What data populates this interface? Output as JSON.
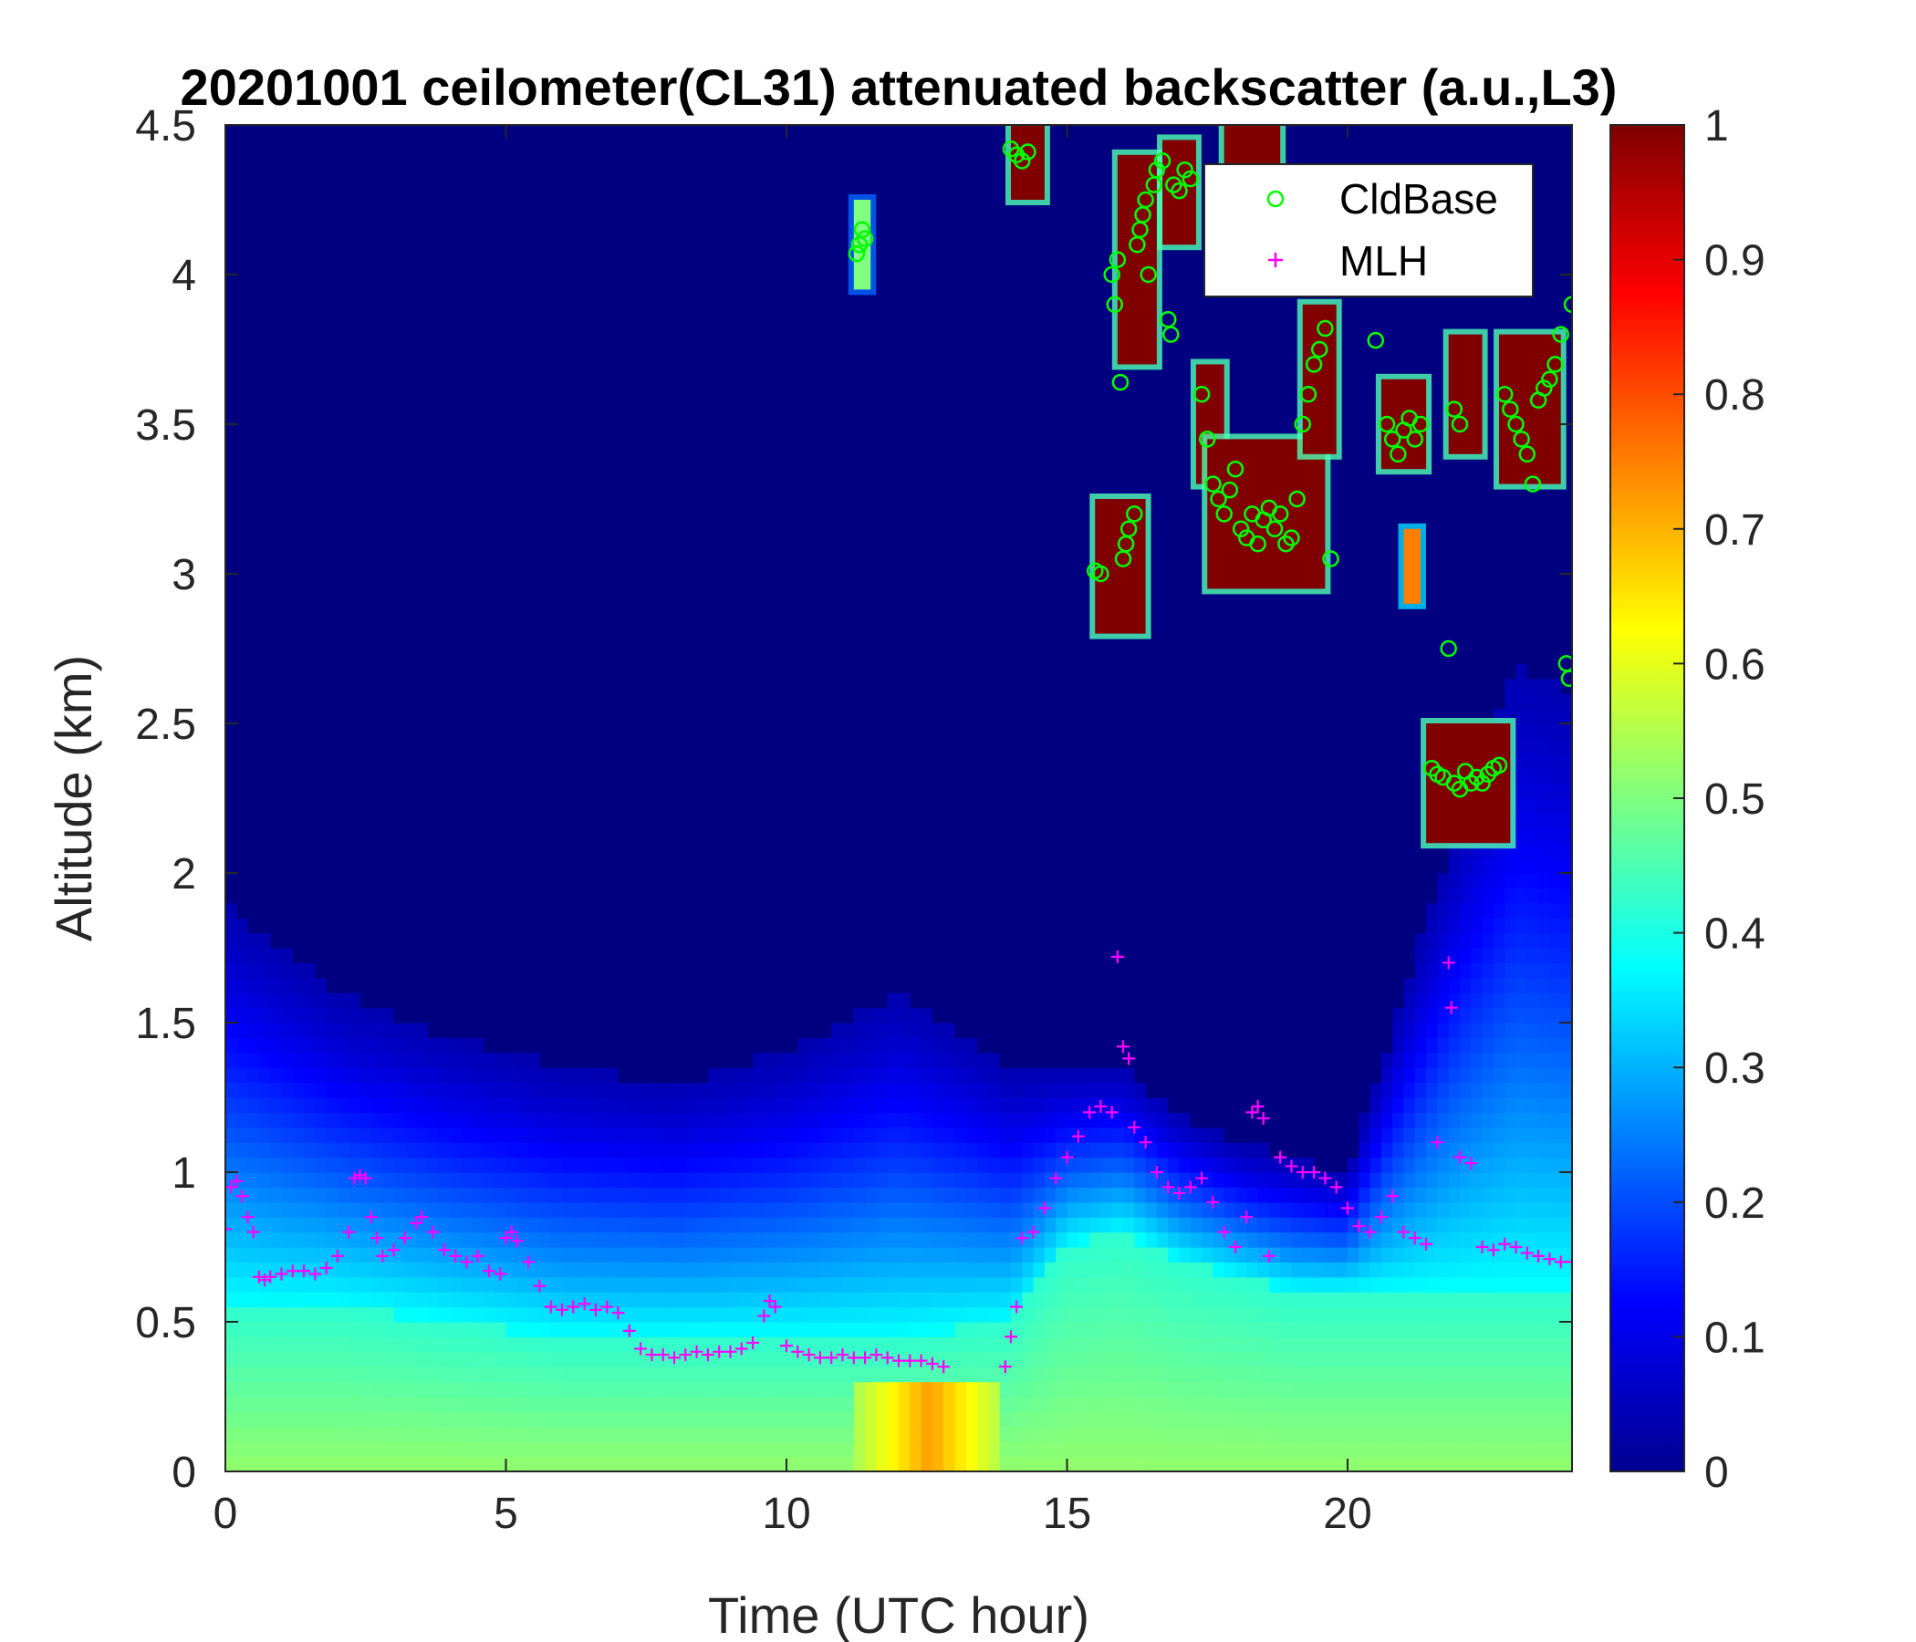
{
  "chart_data": {
    "type": "heatmap",
    "title": "20201001 ceilometer(CL31) attenuated backscatter (a.u.,L3)",
    "xlabel": "Time (UTC hour)",
    "ylabel": "Altitude (km)",
    "xlim": [
      0,
      24
    ],
    "ylim": [
      0,
      4.5
    ],
    "x_ticks": [
      0,
      5,
      10,
      15,
      20
    ],
    "y_ticks": [
      0,
      0.5,
      1,
      1.5,
      2,
      2.5,
      3,
      3.5,
      4,
      4.5
    ],
    "colorbar": {
      "colormap": "jet",
      "range": [
        0,
        1
      ],
      "ticks": [
        0,
        0.1,
        0.2,
        0.3,
        0.4,
        0.5,
        0.6,
        0.7,
        0.8,
        0.9,
        1
      ]
    },
    "legend": {
      "placement": "top-right",
      "entries": [
        {
          "label": "CldBase",
          "marker": "circle",
          "color": "#00ff00"
        },
        {
          "label": "MLH",
          "marker": "plus",
          "color": "#ff00ff"
        }
      ]
    },
    "background_layers": [
      {
        "t": 0,
        "top": 1.9,
        "base": 0.55
      },
      {
        "t": 2,
        "top": 1.6,
        "base": 0.55
      },
      {
        "t": 4,
        "top": 1.45,
        "base": 0.5
      },
      {
        "t": 6,
        "top": 1.35,
        "base": 0.45
      },
      {
        "t": 8,
        "top": 1.3,
        "base": 0.45
      },
      {
        "t": 10,
        "top": 1.4,
        "base": 0.45
      },
      {
        "t": 12,
        "top": 1.6,
        "base": 0.45
      },
      {
        "t": 14,
        "top": 1.35,
        "base": 0.5
      },
      {
        "t": 15,
        "top": 1.35,
        "base": 0.75
      },
      {
        "t": 16,
        "top": 1.35,
        "base": 0.8
      },
      {
        "t": 17,
        "top": 1.2,
        "base": 0.7
      },
      {
        "t": 18,
        "top": 1.1,
        "base": 0.65
      },
      {
        "t": 19,
        "top": 1.05,
        "base": 0.6
      },
      {
        "t": 20,
        "top": 1.0,
        "base": 0.6
      },
      {
        "t": 21,
        "top": 1.6,
        "base": 0.6
      },
      {
        "t": 22,
        "top": 2.2,
        "base": 0.6
      },
      {
        "t": 23,
        "top": 2.7,
        "base": 0.6
      },
      {
        "t": 24,
        "top": 2.6,
        "base": 0.6
      }
    ],
    "surface_hotspot": {
      "t_start": 11.3,
      "t_end": 13.8,
      "alt_max": 0.32,
      "value": 0.72
    },
    "cloud_patches": [
      {
        "t0": 11.2,
        "t1": 11.5,
        "z0": 3.95,
        "z1": 4.25,
        "value": 0.5
      },
      {
        "t0": 14.0,
        "t1": 14.6,
        "z0": 4.25,
        "z1": 4.5,
        "value": 1.0
      },
      {
        "t0": 15.5,
        "t1": 16.4,
        "z0": 2.8,
        "z1": 3.25,
        "value": 1.0
      },
      {
        "t0": 15.9,
        "t1": 16.6,
        "z0": 3.7,
        "z1": 4.4,
        "value": 1.0
      },
      {
        "t0": 16.7,
        "t1": 17.3,
        "z0": 4.1,
        "z1": 4.45,
        "value": 1.0
      },
      {
        "t0": 17.3,
        "t1": 17.8,
        "z0": 3.3,
        "z1": 3.7,
        "value": 1.0
      },
      {
        "t0": 17.5,
        "t1": 19.6,
        "z0": 2.95,
        "z1": 3.45,
        "value": 1.0
      },
      {
        "t0": 17.8,
        "t1": 18.8,
        "z0": 4.3,
        "z1": 4.5,
        "value": 1.0
      },
      {
        "t0": 19.2,
        "t1": 19.8,
        "z0": 3.4,
        "z1": 3.9,
        "value": 1.0
      },
      {
        "t0": 20.6,
        "t1": 21.4,
        "z0": 3.35,
        "z1": 3.65,
        "value": 1.0
      },
      {
        "t0": 21.0,
        "t1": 21.3,
        "z0": 2.9,
        "z1": 3.15,
        "value": 0.75
      },
      {
        "t0": 21.4,
        "t1": 22.9,
        "z0": 2.1,
        "z1": 2.5,
        "value": 1.0
      },
      {
        "t0": 21.8,
        "t1": 22.4,
        "z0": 3.4,
        "z1": 3.8,
        "value": 1.0
      },
      {
        "t0": 22.7,
        "t1": 23.8,
        "z0": 3.3,
        "z1": 3.8,
        "value": 1.0
      }
    ],
    "series": [
      {
        "name": "CldBase",
        "points": [
          [
            11.25,
            4.07
          ],
          [
            11.3,
            4.1
          ],
          [
            11.35,
            4.15
          ],
          [
            11.4,
            4.12
          ],
          [
            14.0,
            4.42
          ],
          [
            14.1,
            4.4
          ],
          [
            14.2,
            4.38
          ],
          [
            14.3,
            4.41
          ],
          [
            15.5,
            3.01
          ],
          [
            15.6,
            3.0
          ],
          [
            15.8,
            4.0
          ],
          [
            15.85,
            3.9
          ],
          [
            15.9,
            4.05
          ],
          [
            15.95,
            3.64
          ],
          [
            16.0,
            3.05
          ],
          [
            16.05,
            3.1
          ],
          [
            16.1,
            3.15
          ],
          [
            16.2,
            3.2
          ],
          [
            16.25,
            4.1
          ],
          [
            16.3,
            4.15
          ],
          [
            16.35,
            4.2
          ],
          [
            16.4,
            4.25
          ],
          [
            16.45,
            4.0
          ],
          [
            16.55,
            4.3
          ],
          [
            16.6,
            4.35
          ],
          [
            16.7,
            4.38
          ],
          [
            16.8,
            3.85
          ],
          [
            16.85,
            3.8
          ],
          [
            16.9,
            4.3
          ],
          [
            17.0,
            4.28
          ],
          [
            17.1,
            4.35
          ],
          [
            17.2,
            4.32
          ],
          [
            17.4,
            3.6
          ],
          [
            17.5,
            3.45
          ],
          [
            17.6,
            3.3
          ],
          [
            17.7,
            3.25
          ],
          [
            17.8,
            3.2
          ],
          [
            17.9,
            3.28
          ],
          [
            18.0,
            3.35
          ],
          [
            18.1,
            3.15
          ],
          [
            18.2,
            3.12
          ],
          [
            18.3,
            3.2
          ],
          [
            18.4,
            3.1
          ],
          [
            18.5,
            3.18
          ],
          [
            18.6,
            3.22
          ],
          [
            18.7,
            3.15
          ],
          [
            18.8,
            3.2
          ],
          [
            18.9,
            3.1
          ],
          [
            19.0,
            3.12
          ],
          [
            19.1,
            3.25
          ],
          [
            19.2,
            3.5
          ],
          [
            19.3,
            3.6
          ],
          [
            19.4,
            3.7
          ],
          [
            19.5,
            3.75
          ],
          [
            19.6,
            3.82
          ],
          [
            19.7,
            3.05
          ],
          [
            20.5,
            3.78
          ],
          [
            20.7,
            3.5
          ],
          [
            20.8,
            3.45
          ],
          [
            20.9,
            3.4
          ],
          [
            21.0,
            3.48
          ],
          [
            21.1,
            3.52
          ],
          [
            21.2,
            3.45
          ],
          [
            21.3,
            3.5
          ],
          [
            21.5,
            2.35
          ],
          [
            21.6,
            2.33
          ],
          [
            21.7,
            2.32
          ],
          [
            21.8,
            2.75
          ],
          [
            21.9,
            2.3
          ],
          [
            22.0,
            2.28
          ],
          [
            22.1,
            2.34
          ],
          [
            22.2,
            2.3
          ],
          [
            22.3,
            2.32
          ],
          [
            22.4,
            2.3
          ],
          [
            22.5,
            2.33
          ],
          [
            22.6,
            2.35
          ],
          [
            22.7,
            2.36
          ],
          [
            21.9,
            3.55
          ],
          [
            22.0,
            3.5
          ],
          [
            22.8,
            3.6
          ],
          [
            22.9,
            3.55
          ],
          [
            23.0,
            3.5
          ],
          [
            23.1,
            3.45
          ],
          [
            23.2,
            3.4
          ],
          [
            23.3,
            3.3
          ],
          [
            23.4,
            3.58
          ],
          [
            23.5,
            3.62
          ],
          [
            23.6,
            3.65
          ],
          [
            23.7,
            3.7
          ],
          [
            23.8,
            3.8
          ],
          [
            23.9,
            2.7
          ],
          [
            23.95,
            2.65
          ],
          [
            24.0,
            3.9
          ]
        ]
      },
      {
        "name": "MLH",
        "points": [
          [
            0.0,
            0.81
          ],
          [
            0.1,
            0.95
          ],
          [
            0.2,
            0.97
          ],
          [
            0.3,
            0.92
          ],
          [
            0.4,
            0.85
          ],
          [
            0.5,
            0.8
          ],
          [
            0.6,
            0.65
          ],
          [
            0.7,
            0.64
          ],
          [
            0.8,
            0.65
          ],
          [
            1.0,
            0.66
          ],
          [
            1.2,
            0.67
          ],
          [
            1.4,
            0.67
          ],
          [
            1.6,
            0.66
          ],
          [
            1.8,
            0.68
          ],
          [
            2.0,
            0.72
          ],
          [
            2.2,
            0.8
          ],
          [
            2.3,
            0.98
          ],
          [
            2.4,
            0.99
          ],
          [
            2.5,
            0.98
          ],
          [
            2.6,
            0.85
          ],
          [
            2.7,
            0.78
          ],
          [
            2.8,
            0.72
          ],
          [
            3.0,
            0.74
          ],
          [
            3.2,
            0.78
          ],
          [
            3.4,
            0.83
          ],
          [
            3.5,
            0.85
          ],
          [
            3.7,
            0.8
          ],
          [
            3.9,
            0.74
          ],
          [
            4.1,
            0.72
          ],
          [
            4.3,
            0.7
          ],
          [
            4.5,
            0.72
          ],
          [
            4.7,
            0.67
          ],
          [
            4.9,
            0.66
          ],
          [
            5.0,
            0.78
          ],
          [
            5.1,
            0.8
          ],
          [
            5.2,
            0.77
          ],
          [
            5.4,
            0.7
          ],
          [
            5.6,
            0.62
          ],
          [
            5.8,
            0.55
          ],
          [
            6.0,
            0.54
          ],
          [
            6.2,
            0.55
          ],
          [
            6.4,
            0.56
          ],
          [
            6.6,
            0.54
          ],
          [
            6.8,
            0.55
          ],
          [
            7.0,
            0.53
          ],
          [
            7.2,
            0.47
          ],
          [
            7.4,
            0.41
          ],
          [
            7.6,
            0.39
          ],
          [
            7.8,
            0.39
          ],
          [
            8.0,
            0.38
          ],
          [
            8.2,
            0.39
          ],
          [
            8.4,
            0.4
          ],
          [
            8.6,
            0.39
          ],
          [
            8.8,
            0.4
          ],
          [
            9.0,
            0.4
          ],
          [
            9.2,
            0.41
          ],
          [
            9.4,
            0.43
          ],
          [
            9.6,
            0.52
          ],
          [
            9.7,
            0.57
          ],
          [
            9.8,
            0.55
          ],
          [
            10.0,
            0.42
          ],
          [
            10.2,
            0.4
          ],
          [
            10.4,
            0.39
          ],
          [
            10.6,
            0.38
          ],
          [
            10.8,
            0.38
          ],
          [
            11.0,
            0.39
          ],
          [
            11.2,
            0.38
          ],
          [
            11.4,
            0.38
          ],
          [
            11.6,
            0.39
          ],
          [
            11.8,
            0.38
          ],
          [
            12.0,
            0.37
          ],
          [
            12.2,
            0.37
          ],
          [
            12.4,
            0.37
          ],
          [
            12.6,
            0.36
          ],
          [
            12.8,
            0.35
          ],
          [
            13.9,
            0.35
          ],
          [
            14.0,
            0.45
          ],
          [
            14.1,
            0.55
          ],
          [
            14.2,
            0.78
          ],
          [
            14.4,
            0.8
          ],
          [
            14.6,
            0.88
          ],
          [
            14.8,
            0.98
          ],
          [
            15.0,
            1.05
          ],
          [
            15.2,
            1.12
          ],
          [
            15.4,
            1.2
          ],
          [
            15.6,
            1.22
          ],
          [
            15.8,
            1.2
          ],
          [
            15.9,
            1.72
          ],
          [
            16.0,
            1.42
          ],
          [
            16.1,
            1.38
          ],
          [
            16.2,
            1.15
          ],
          [
            16.4,
            1.1
          ],
          [
            16.6,
            1.0
          ],
          [
            16.8,
            0.95
          ],
          [
            17.0,
            0.93
          ],
          [
            17.2,
            0.95
          ],
          [
            17.4,
            0.98
          ],
          [
            17.6,
            0.9
          ],
          [
            17.8,
            0.8
          ],
          [
            18.0,
            0.75
          ],
          [
            18.2,
            0.85
          ],
          [
            18.3,
            1.2
          ],
          [
            18.4,
            1.22
          ],
          [
            18.5,
            1.18
          ],
          [
            18.6,
            0.72
          ],
          [
            18.8,
            1.05
          ],
          [
            19.0,
            1.02
          ],
          [
            19.2,
            1.0
          ],
          [
            19.4,
            1.0
          ],
          [
            19.6,
            0.98
          ],
          [
            19.8,
            0.95
          ],
          [
            20.0,
            0.88
          ],
          [
            20.2,
            0.82
          ],
          [
            20.4,
            0.8
          ],
          [
            20.6,
            0.85
          ],
          [
            20.8,
            0.92
          ],
          [
            21.0,
            0.8
          ],
          [
            21.2,
            0.78
          ],
          [
            21.4,
            0.76
          ],
          [
            21.6,
            1.1
          ],
          [
            21.8,
            1.7
          ],
          [
            21.85,
            1.55
          ],
          [
            22.0,
            1.05
          ],
          [
            22.2,
            1.03
          ],
          [
            22.4,
            0.75
          ],
          [
            22.6,
            0.74
          ],
          [
            22.8,
            0.76
          ],
          [
            23.0,
            0.75
          ],
          [
            23.2,
            0.73
          ],
          [
            23.4,
            0.72
          ],
          [
            23.6,
            0.71
          ],
          [
            23.8,
            0.7
          ],
          [
            24.0,
            0.7
          ]
        ]
      }
    ]
  }
}
